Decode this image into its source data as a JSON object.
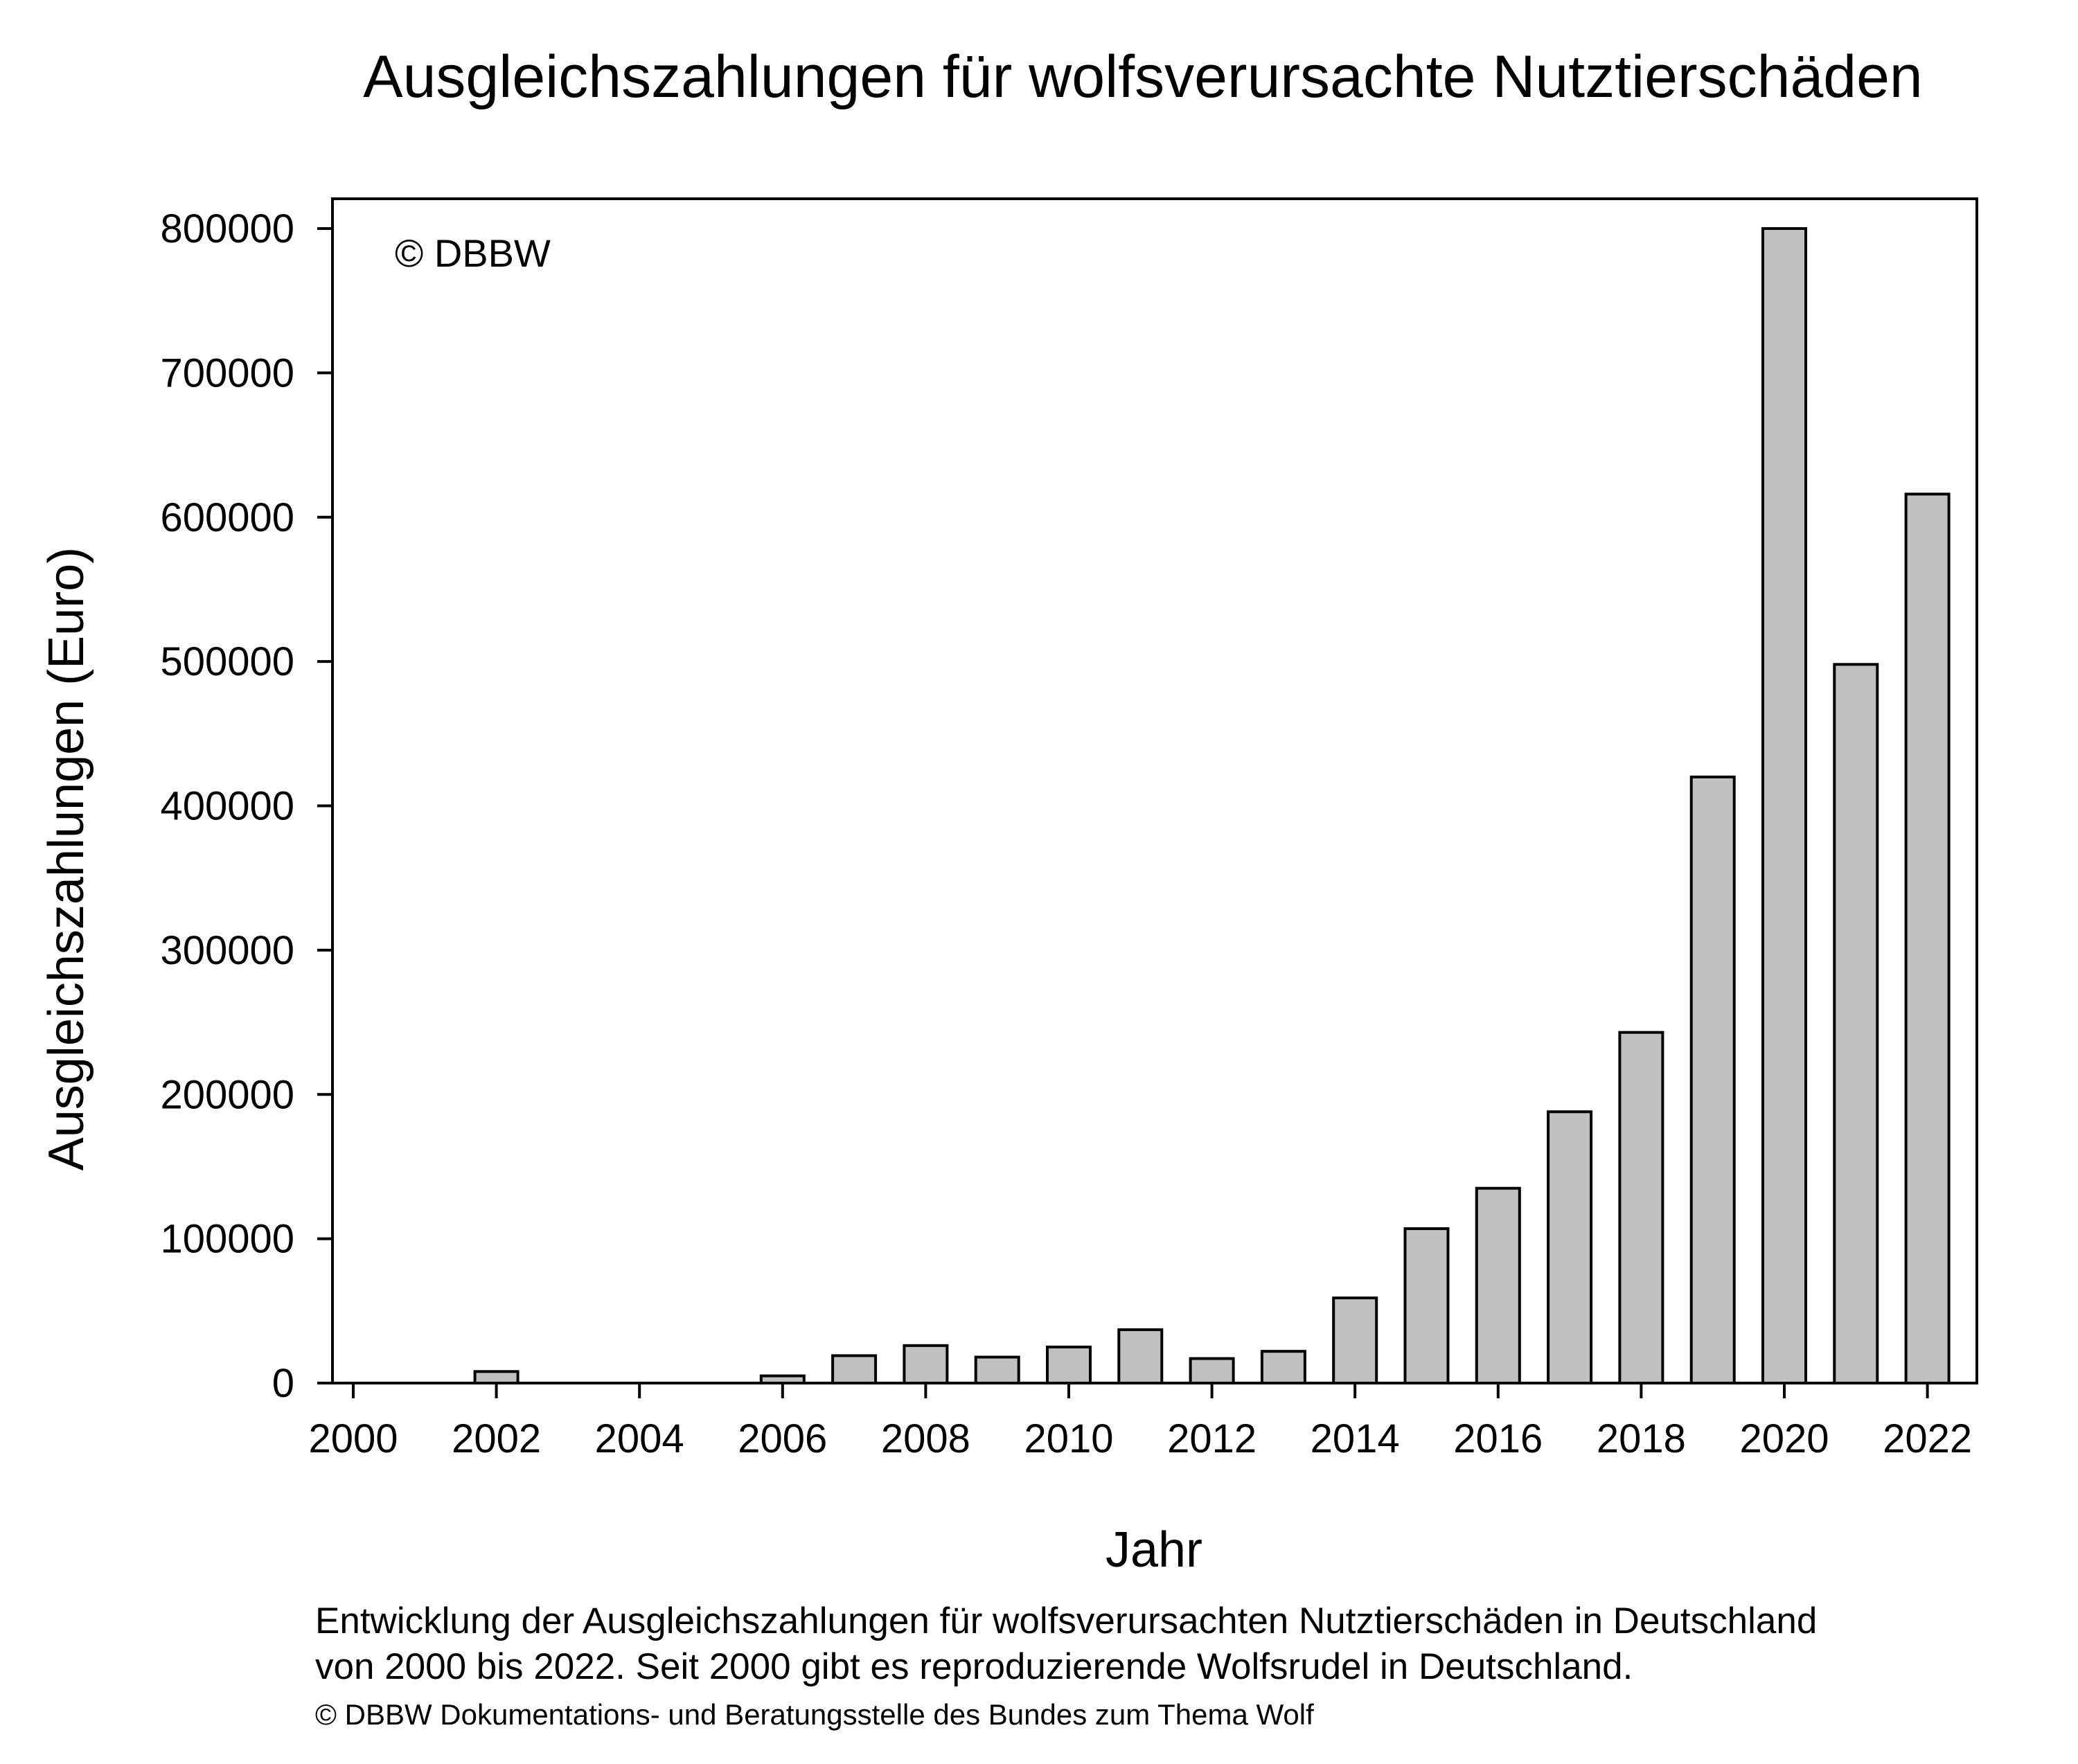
{
  "chart_data": {
    "type": "bar",
    "title": "Ausgleichszahlungen für wolfsverursachte Nutztierschäden",
    "xlabel": "Jahr",
    "ylabel": "Ausgleichszahlungen (Euro)",
    "watermark": "© DBBW",
    "categories": [
      "2000",
      "2001",
      "2002",
      "2003",
      "2004",
      "2005",
      "2006",
      "2007",
      "2008",
      "2009",
      "2010",
      "2011",
      "2012",
      "2013",
      "2014",
      "2015",
      "2016",
      "2017",
      "2018",
      "2019",
      "2020",
      "2021",
      "2022"
    ],
    "values": [
      0,
      0,
      8000,
      0,
      0,
      0,
      5000,
      19000,
      26000,
      18000,
      25000,
      37000,
      17000,
      22000,
      59000,
      107000,
      135000,
      188000,
      243000,
      420000,
      800000,
      498000,
      616000
    ],
    "xticks": [
      "2000",
      "2002",
      "2004",
      "2006",
      "2008",
      "2010",
      "2012",
      "2014",
      "2016",
      "2018",
      "2020",
      "2022"
    ],
    "yticks": [
      "0",
      "100000",
      "200000",
      "300000",
      "400000",
      "500000",
      "600000",
      "700000",
      "800000"
    ],
    "ylim": [
      0,
      820000
    ],
    "bar_color": "#c0c0c0",
    "grid": false
  },
  "caption": {
    "line1": "Entwicklung der Ausgleichszahlungen für wolfsverursachten Nutztierschäden in Deutschland",
    "line2": "von 2000 bis 2022. Seit 2000 gibt es reproduzierende Wolfsrudel in Deutschland.",
    "copyright": "© DBBW Dokumentations- und Beratungsstelle des Bundes zum Thema Wolf"
  }
}
